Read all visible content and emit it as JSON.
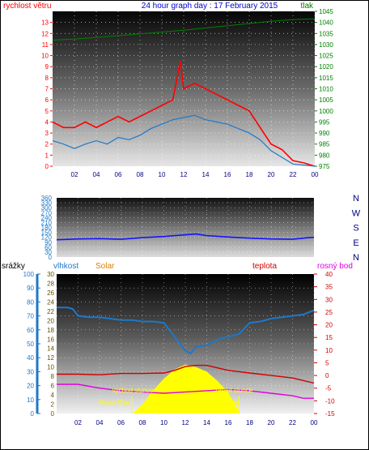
{
  "header": {
    "wind_label": "rychlost větru",
    "title": "24 hour graph day : 17 February 2015",
    "pressure_label": "tlak"
  },
  "labels": {
    "rain": "srážky",
    "humidity": "vlhkost",
    "solar": "Solar",
    "temperature": "teplota",
    "dewpoint": "rosný bod",
    "sunrise": "východ slunce",
    "sunset": "západ slunce",
    "moonrise": "Moon Rise",
    "moonset": "Moon Set"
  },
  "colors": {
    "wind": "#ff0000",
    "avg_wind": "#1e78c8",
    "pressure": "#008000",
    "direction": "#1414ff",
    "humidity": "#1e78c8",
    "temperature": "#d00000",
    "dewpoint": "#e000e0",
    "solar": "#ffff00",
    "title": "#0000cc",
    "rain_axis": "#1e78c8",
    "solar_label": "#e08000"
  },
  "chart_data": [
    {
      "id": "wind",
      "type": "line",
      "x_ticks": [
        "02",
        "04",
        "06",
        "08",
        "10",
        "12",
        "14",
        "16",
        "18",
        "20",
        "22",
        "00"
      ],
      "wind_ticks": [
        0,
        1,
        2,
        3,
        4,
        5,
        6,
        7,
        8,
        9,
        10,
        11,
        12,
        13
      ],
      "pressure_ticks": [
        975,
        980,
        985,
        990,
        995,
        1000,
        1005,
        1010,
        1015,
        1020,
        1025,
        1030,
        1035,
        1040,
        1045
      ],
      "ylim_wind": [
        0,
        14
      ],
      "ylim_pressure": [
        975,
        1045
      ],
      "xlim_hours": [
        0,
        24
      ],
      "series": [
        {
          "name": "rychlost větru",
          "key": "gust",
          "x": [
            0,
            1,
            2,
            3,
            4,
            5,
            6,
            7,
            8,
            9,
            10,
            11,
            11.7,
            12,
            13,
            14,
            15,
            16,
            17,
            18,
            19,
            20,
            21,
            22,
            23,
            24
          ],
          "values": [
            4,
            3.5,
            3.5,
            4,
            3.5,
            4,
            4.5,
            4,
            4.5,
            5,
            5.5,
            6,
            9.5,
            7,
            7.5,
            7,
            6.5,
            6,
            5.5,
            5,
            3.5,
            2,
            1.5,
            0.5,
            0.3,
            0
          ]
        },
        {
          "key": "avg",
          "x": [
            0,
            1,
            2,
            3,
            4,
            5,
            6,
            7,
            8,
            9,
            10,
            11,
            12,
            13,
            14,
            15,
            16,
            17,
            18,
            19,
            20,
            21,
            22,
            23,
            24
          ],
          "values": [
            2.3,
            2,
            1.6,
            2,
            2.3,
            2,
            2.6,
            2.4,
            2.8,
            3.4,
            3.8,
            4.2,
            4.4,
            4.6,
            4.2,
            4,
            3.8,
            3.4,
            3,
            2.4,
            1.4,
            0.8,
            0.2,
            0.1,
            0
          ]
        },
        {
          "name": "tlak",
          "key": "pressure",
          "x": [
            0,
            2,
            4,
            6,
            8,
            10,
            12,
            14,
            16,
            18,
            20,
            22,
            24
          ],
          "values": [
            1032,
            1032.5,
            1033.2,
            1034,
            1034.8,
            1035.6,
            1036.5,
            1037.5,
            1038.5,
            1039.5,
            1040.5,
            1041.3,
            1041.6
          ]
        }
      ]
    },
    {
      "id": "direction",
      "type": "line",
      "y_ticks": [
        0,
        30,
        60,
        90,
        120,
        150,
        180,
        210,
        240,
        270,
        300,
        330,
        360
      ],
      "compass": [
        "N",
        "W",
        "S",
        "E",
        "N"
      ],
      "ylim": [
        0,
        360
      ],
      "xlim_hours": [
        0,
        24
      ],
      "series": [
        {
          "key": "direction",
          "x": [
            0,
            2,
            4,
            6,
            8,
            10,
            12,
            13,
            14,
            16,
            18,
            20,
            22,
            23.5,
            24
          ],
          "values": [
            105,
            110,
            112,
            108,
            118,
            125,
            135,
            140,
            130,
            122,
            115,
            110,
            108,
            118,
            120
          ]
        }
      ]
    },
    {
      "id": "climate",
      "type": "line",
      "x_ticks": [
        "02",
        "04",
        "06",
        "08",
        "10",
        "12",
        "14",
        "16",
        "18",
        "20",
        "22",
        "00"
      ],
      "rain_ticks": [
        0,
        10,
        20,
        30,
        40,
        50,
        60,
        70,
        80,
        90,
        100
      ],
      "solar_ticks": [
        0,
        2,
        4,
        6,
        8,
        10,
        12,
        14,
        16,
        18,
        20,
        22,
        24,
        26,
        28,
        30
      ],
      "temp_ticks": [
        -15,
        -10,
        -5,
        0,
        5,
        10,
        15,
        20,
        25,
        30,
        35,
        40
      ],
      "ylim_humidity": [
        0,
        100
      ],
      "ylim_solar": [
        0,
        30
      ],
      "ylim_temp": [
        -15,
        40
      ],
      "xlim_hours": [
        0,
        24
      ],
      "series": [
        {
          "key": "humidity",
          "x": [
            0,
            1,
            1.5,
            2,
            3,
            4,
            5,
            6,
            7,
            8,
            9,
            10,
            11,
            12,
            12.5,
            13,
            14,
            15,
            16,
            17,
            18,
            19,
            20,
            21,
            22,
            23,
            24
          ],
          "values": [
            76,
            76,
            75,
            70,
            69,
            69,
            68,
            67,
            67,
            66,
            66,
            65,
            55,
            45,
            43,
            48,
            49,
            53,
            55,
            57,
            65,
            66,
            68,
            69,
            70,
            71,
            74
          ]
        },
        {
          "key": "temperature",
          "x": [
            0,
            2,
            4,
            6,
            8,
            10,
            11,
            12,
            13,
            14,
            15,
            16,
            18,
            20,
            22,
            23,
            24
          ],
          "values": [
            0.5,
            0.5,
            0.3,
            0.8,
            0.8,
            1,
            2,
            3.5,
            4,
            4,
            3,
            2,
            1,
            0,
            -1,
            -2,
            -3
          ]
        },
        {
          "key": "dewpoint",
          "x": [
            0,
            2,
            4,
            6,
            8,
            10,
            12,
            14,
            16,
            18,
            20,
            22,
            23,
            24
          ],
          "values": [
            -3.5,
            -3.5,
            -5,
            -6,
            -6.5,
            -7,
            -6.5,
            -6,
            -5.5,
            -6,
            -7,
            -8,
            -9,
            -9
          ]
        },
        {
          "key": "solar",
          "x": [
            7.1,
            8,
            9,
            10,
            11,
            12,
            13,
            14,
            15,
            16,
            17,
            17.1
          ],
          "values": [
            0,
            2,
            5,
            7.5,
            9.5,
            10.5,
            10,
            9,
            7,
            4.5,
            0.5,
            0
          ]
        }
      ],
      "events_hours": {
        "moonrise": 7,
        "sunrise": 7.1,
        "moonset": 17,
        "sunset": 17.1
      }
    }
  ]
}
